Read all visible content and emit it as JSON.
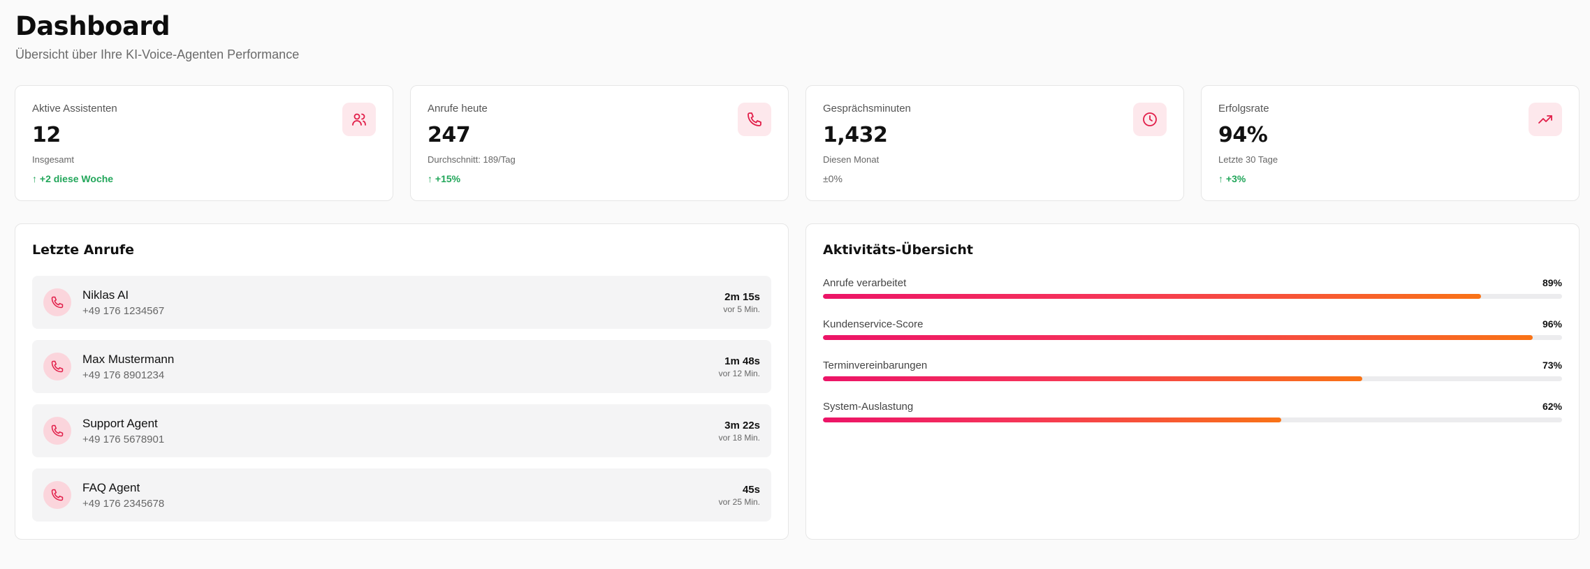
{
  "header": {
    "title": "Dashboard",
    "subtitle": "Übersicht über Ihre KI-Voice-Agenten Performance"
  },
  "colors": {
    "accent": "#e11d48",
    "accent_bg": "#fde8ec",
    "trend_up": "#22a65a",
    "gradient_start": "#ec1467",
    "gradient_end": "#f97316"
  },
  "stats": [
    {
      "label": "Aktive Assistenten",
      "value": "12",
      "sub": "Insgesamt",
      "trend": "↑ +2 diese Woche",
      "icon": "users-icon"
    },
    {
      "label": "Anrufe heute",
      "value": "247",
      "sub": "Durchschnitt: 189/Tag",
      "trend": "↑ +15%",
      "icon": "phone-icon"
    },
    {
      "label": "Gesprächsminuten",
      "value": "1,432",
      "sub": "Diesen Monat",
      "trend": "±0%",
      "icon": "clock-icon"
    },
    {
      "label": "Erfolgsrate",
      "value": "94%",
      "sub": "Letzte 30 Tage",
      "trend": "↑ +3%",
      "icon": "trending-up-icon"
    }
  ],
  "recent_calls": {
    "title": "Letzte Anrufe",
    "items": [
      {
        "name": "Niklas AI",
        "phone": "+49 176 1234567",
        "duration": "2m 15s",
        "time": "vor 5 Min."
      },
      {
        "name": "Max Mustermann",
        "phone": "+49 176 8901234",
        "duration": "1m 48s",
        "time": "vor 12 Min."
      },
      {
        "name": "Support Agent",
        "phone": "+49 176 5678901",
        "duration": "3m 22s",
        "time": "vor 18 Min."
      },
      {
        "name": "FAQ Agent",
        "phone": "+49 176 2345678",
        "duration": "45s",
        "time": "vor 25 Min."
      }
    ]
  },
  "activity": {
    "title": "Aktivitäts-Übersicht",
    "items": [
      {
        "label": "Anrufe verarbeitet",
        "percent_label": "89%",
        "value": 89
      },
      {
        "label": "Kundenservice-Score",
        "percent_label": "96%",
        "value": 96
      },
      {
        "label": "Terminvereinbarungen",
        "percent_label": "73%",
        "value": 73
      },
      {
        "label": "System-Auslastung",
        "percent_label": "62%",
        "value": 62
      }
    ]
  }
}
